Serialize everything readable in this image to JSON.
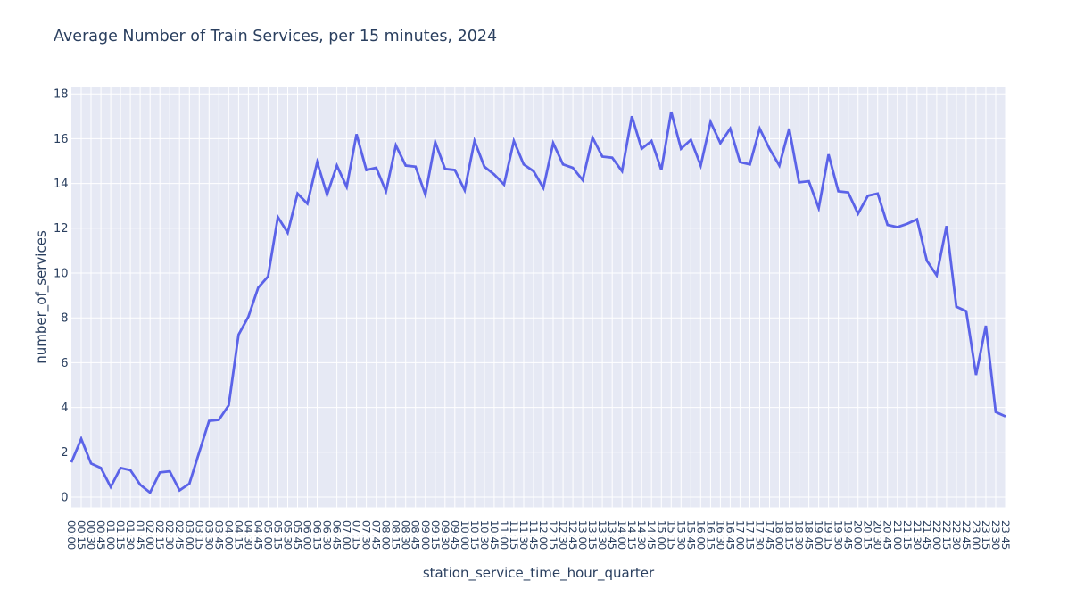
{
  "title": "Average Number of Train Services, per 15 minutes, 2024",
  "chart_data": {
    "type": "line",
    "title": "Average Number of Train Services, per 15 minutes, 2024",
    "xlabel": "station_service_time_hour_quarter",
    "ylabel": "number_of_services",
    "categories": [
      "00:00",
      "00:15",
      "00:30",
      "00:45",
      "01:00",
      "01:15",
      "01:30",
      "01:45",
      "02:00",
      "02:15",
      "02:30",
      "02:45",
      "03:00",
      "03:15",
      "03:30",
      "03:45",
      "04:00",
      "04:15",
      "04:30",
      "04:45",
      "05:00",
      "05:15",
      "05:30",
      "05:45",
      "06:00",
      "06:15",
      "06:30",
      "06:45",
      "07:00",
      "07:15",
      "07:30",
      "07:45",
      "08:00",
      "08:15",
      "08:30",
      "08:45",
      "09:00",
      "09:15",
      "09:30",
      "09:45",
      "10:00",
      "10:15",
      "10:30",
      "10:45",
      "11:00",
      "11:15",
      "11:30",
      "11:45",
      "12:00",
      "12:15",
      "12:30",
      "12:45",
      "13:00",
      "13:15",
      "13:30",
      "13:45",
      "14:00",
      "14:15",
      "14:30",
      "14:45",
      "15:00",
      "15:15",
      "15:30",
      "15:45",
      "16:00",
      "16:15",
      "16:30",
      "16:45",
      "17:00",
      "17:15",
      "17:30",
      "17:45",
      "18:00",
      "18:15",
      "18:30",
      "18:45",
      "19:00",
      "19:15",
      "19:30",
      "19:45",
      "20:00",
      "20:15",
      "20:30",
      "20:45",
      "21:00",
      "21:15",
      "21:30",
      "21:45",
      "22:00",
      "22:15",
      "22:30",
      "22:45",
      "23:00",
      "23:15",
      "23:30",
      "23:45"
    ],
    "values": [
      1.55,
      2.6,
      1.5,
      1.3,
      0.45,
      1.3,
      1.2,
      0.55,
      0.2,
      1.1,
      1.15,
      0.3,
      0.6,
      2.0,
      3.4,
      3.45,
      4.1,
      7.25,
      8.05,
      9.35,
      9.85,
      12.5,
      11.8,
      13.55,
      13.1,
      14.95,
      13.5,
      14.8,
      13.85,
      16.2,
      14.6,
      14.7,
      13.65,
      15.7,
      14.8,
      14.75,
      13.5,
      15.85,
      14.65,
      14.6,
      13.7,
      15.9,
      14.75,
      14.4,
      13.95,
      15.9,
      14.85,
      14.55,
      13.8,
      15.8,
      14.85,
      14.7,
      14.15,
      16.05,
      15.2,
      15.15,
      14.55,
      17.0,
      15.55,
      15.9,
      14.6,
      17.2,
      15.55,
      15.95,
      14.8,
      16.75,
      15.8,
      16.45,
      14.95,
      14.85,
      16.45,
      15.55,
      14.8,
      16.45,
      14.05,
      14.1,
      12.9,
      15.3,
      13.65,
      13.6,
      12.65,
      13.45,
      13.55,
      12.15,
      12.05,
      12.2,
      12.4,
      10.55,
      9.9,
      12.1,
      8.5,
      8.3,
      5.45,
      7.65,
      3.8,
      3.6
    ],
    "yticks": [
      0,
      2,
      4,
      6,
      8,
      10,
      12,
      14,
      16,
      18
    ],
    "ylim": [
      -0.46,
      18.29
    ],
    "grid": true,
    "legend": false,
    "colors": {
      "line": "#5b63e8",
      "plot_bg": "#e6e9f4",
      "grid": "#ffffff",
      "text": "#2a3f5f",
      "page_bg": "#ffffff"
    }
  }
}
